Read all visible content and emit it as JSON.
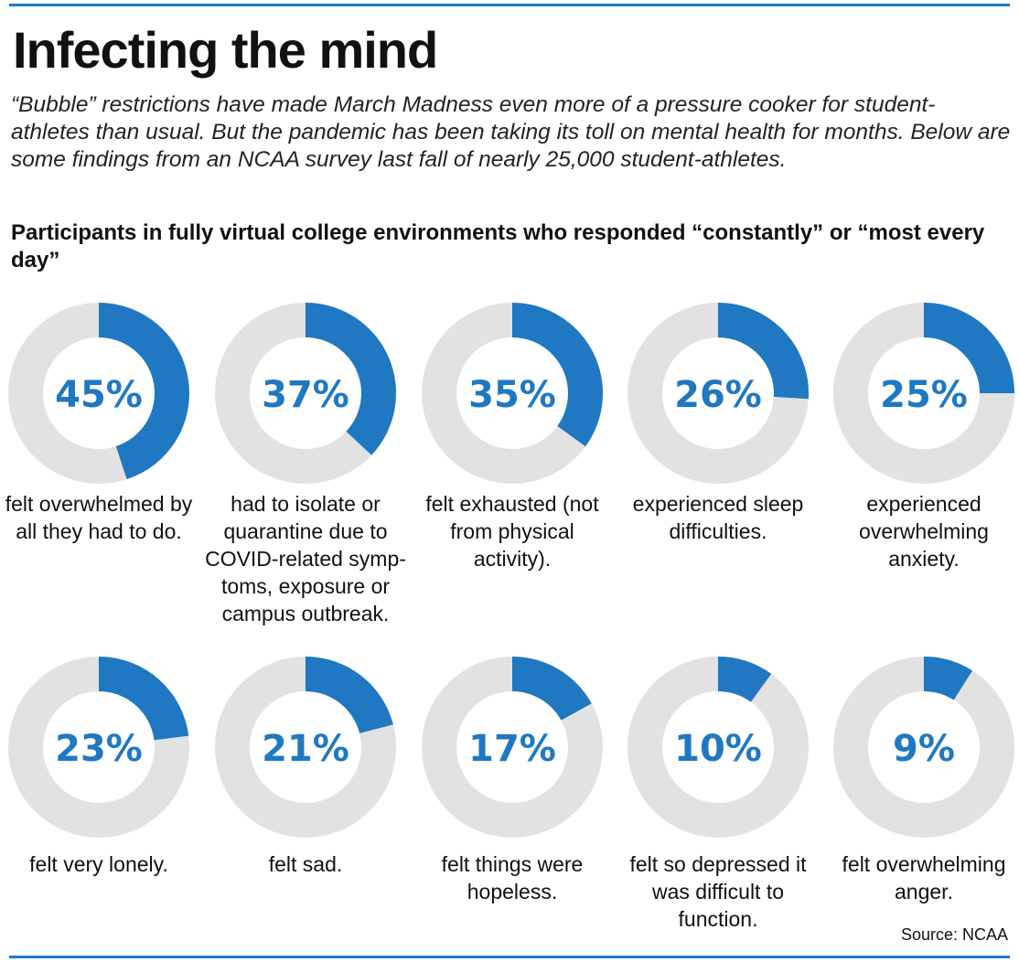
{
  "title": "Infecting the mind",
  "subtitle": "“Bubble” restrictions have made March Madness even more of a pressure cooker for student-athletes than usual. But the pandemic has been taking its toll on mental health for months. Below are some findings from an NCAA survey last fall of nearly 25,000 student-athletes.",
  "chart_heading": "Participants in fully virtual college environments who responded “constantly” or “most every day”",
  "source": "Source: NCAA",
  "colors": {
    "accent": "#1f78c1",
    "track": "#e2e2e2"
  },
  "chart_data": {
    "type": "pie",
    "style": "donut",
    "unit": "%",
    "items": [
      {
        "value": 45,
        "label": "45%",
        "caption": "felt overwhelmed by all they had to do."
      },
      {
        "value": 37,
        "label": "37%",
        "caption": "had to isolate or quarantine due to COVID-related symp-toms, exposure or campus outbreak."
      },
      {
        "value": 35,
        "label": "35%",
        "caption": "felt exhausted (not from physical activity)."
      },
      {
        "value": 26,
        "label": "26%",
        "caption": "experienced sleep difficulties."
      },
      {
        "value": 25,
        "label": "25%",
        "caption": "experienced overwhelming anxiety."
      },
      {
        "value": 23,
        "label": "23%",
        "caption": "felt very lonely."
      },
      {
        "value": 21,
        "label": "21%",
        "caption": "felt sad."
      },
      {
        "value": 17,
        "label": "17%",
        "caption": "felt things were hopeless."
      },
      {
        "value": 10,
        "label": "10%",
        "caption": "felt so depressed it was difficult to function."
      },
      {
        "value": 9,
        "label": "9%",
        "caption": "felt overwhelming anger."
      }
    ]
  }
}
